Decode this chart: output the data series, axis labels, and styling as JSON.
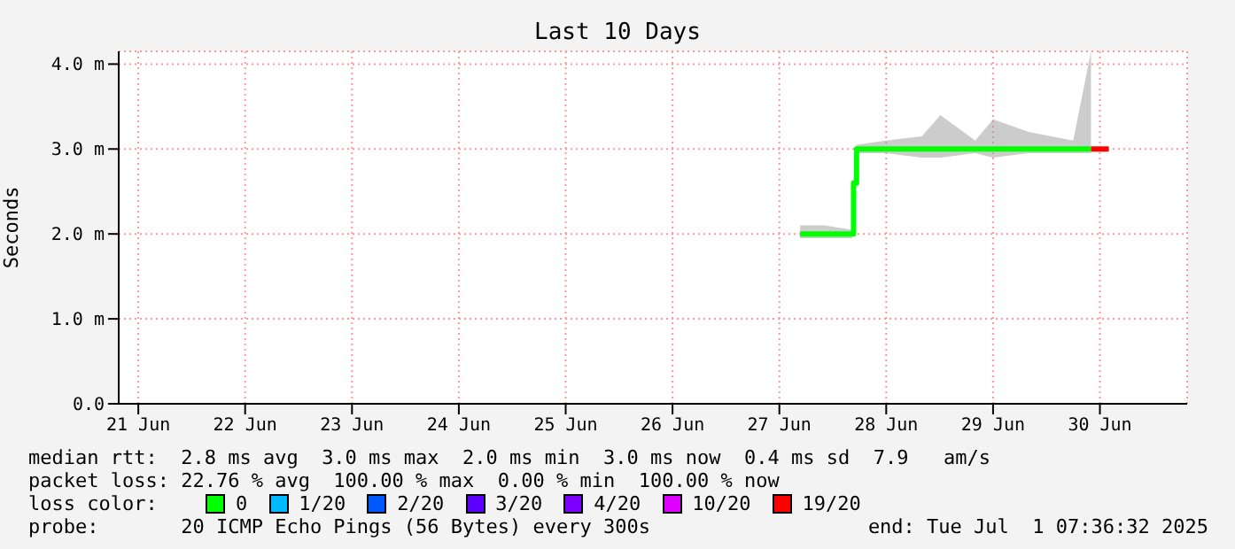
{
  "chart_data": {
    "type": "step",
    "title": "Last 10 Days",
    "ylabel": "Seconds",
    "legend_title": "loss color:",
    "x": [
      "2025-06-27T16:40",
      "2025-06-27T22:00",
      "2025-06-28T04:20",
      "2025-06-28T04:40",
      "2025-06-28T05:20",
      "2025-06-28T12:00",
      "2025-06-28T20:00",
      "2025-06-29T00:10",
      "2025-06-29T08:00",
      "2025-06-29T12:00",
      "2025-06-29T20:00",
      "2025-06-30T06:00",
      "2025-06-30T10:00",
      "2025-06-30T14:00"
    ],
    "series": [
      {
        "name": "0",
        "color": "#00ff00",
        "values": [
          2.0,
          2.0,
          2.0,
          2.6,
          3.0,
          3.0,
          3.0,
          3.0,
          3.0,
          3.0,
          3.0,
          3.0,
          3.0,
          null
        ],
        "lower": [
          1.95,
          1.95,
          1.95,
          2.55,
          2.95,
          2.95,
          2.9,
          2.9,
          2.95,
          2.9,
          2.95,
          2.95,
          2.95,
          null
        ],
        "upper": [
          2.1,
          2.1,
          2.05,
          2.65,
          3.05,
          3.1,
          3.15,
          3.4,
          3.1,
          3.35,
          3.2,
          3.1,
          4.15,
          null
        ]
      },
      {
        "name": "1/20",
        "color": "#00b8ff",
        "values": [
          null,
          null,
          null,
          null,
          null,
          null,
          null,
          null,
          null,
          null,
          null,
          null,
          null,
          null
        ]
      },
      {
        "name": "2/20",
        "color": "#0059ff",
        "values": [
          null,
          null,
          null,
          null,
          null,
          null,
          null,
          null,
          null,
          null,
          null,
          null,
          null,
          null
        ]
      },
      {
        "name": "3/20",
        "color": "#5e00ff",
        "values": [
          null,
          null,
          null,
          null,
          null,
          null,
          null,
          null,
          null,
          null,
          null,
          null,
          null,
          null
        ]
      },
      {
        "name": "4/20",
        "color": "#7e00ff",
        "values": [
          null,
          null,
          null,
          null,
          null,
          null,
          null,
          null,
          null,
          null,
          null,
          null,
          null,
          null
        ]
      },
      {
        "name": "10/20",
        "color": "#dd00ff",
        "values": [
          null,
          null,
          null,
          null,
          null,
          null,
          null,
          null,
          null,
          null,
          null,
          null,
          null,
          null
        ]
      },
      {
        "name": "19/20",
        "color": "#ff0000",
        "values": [
          null,
          null,
          null,
          null,
          null,
          null,
          null,
          null,
          null,
          null,
          null,
          null,
          3.0,
          3.0
        ]
      }
    ],
    "xlim": [
      "2025-06-21T07:36",
      "2025-07-01T07:36"
    ],
    "xticks": [
      {
        "value": "2025-06-21T12:00",
        "label": "21 Jun"
      },
      {
        "value": "2025-06-22T12:00",
        "label": "22 Jun"
      },
      {
        "value": "2025-06-23T12:00",
        "label": "23 Jun"
      },
      {
        "value": "2025-06-24T12:00",
        "label": "24 Jun"
      },
      {
        "value": "2025-06-25T12:00",
        "label": "25 Jun"
      },
      {
        "value": "2025-06-26T12:00",
        "label": "26 Jun"
      },
      {
        "value": "2025-06-27T12:00",
        "label": "27 Jun"
      },
      {
        "value": "2025-06-28T12:00",
        "label": "28 Jun"
      },
      {
        "value": "2025-06-29T12:00",
        "label": "29 Jun"
      },
      {
        "value": "2025-06-30T12:00",
        "label": "30 Jun"
      }
    ],
    "ylim": [
      0,
      4.15
    ],
    "yticks": [
      {
        "value": 0,
        "label": "0.0"
      },
      {
        "value": 1,
        "label": "1.0 m"
      },
      {
        "value": 2,
        "label": "2.0 m"
      },
      {
        "value": 3,
        "label": "3.0 m"
      },
      {
        "value": 4,
        "label": "4.0 m"
      }
    ],
    "grid": true,
    "legend": "bottom",
    "marker": "none",
    "line_style": "solid",
    "annotations": [
      "median rtt:  2.8 ms avg  3.0 ms max  2.0 ms min  3.0 ms now  0.4 ms sd  7.9   am/s",
      "packet loss: 22.76 % avg  100.00 % max  0.00 % min  100.00 % now",
      "probe:       20 ICMP Echo Pings (56 Bytes) every 300s",
      "end: Tue Jul  1 07:36:32 2025"
    ]
  }
}
